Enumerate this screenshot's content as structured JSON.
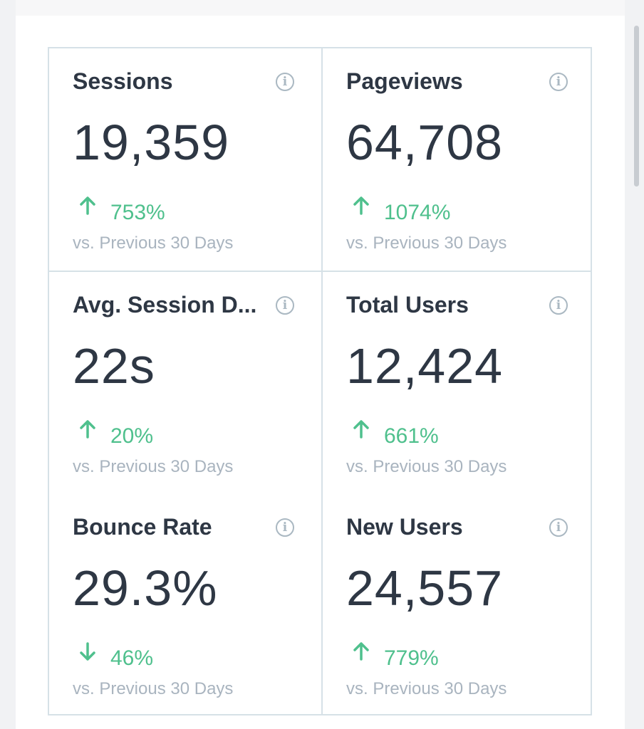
{
  "metrics": [
    {
      "title": "Sessions",
      "value": "19,359",
      "change": "753%",
      "direction": "up",
      "compare": "vs. Previous 30 Days"
    },
    {
      "title": "Pageviews",
      "value": "64,708",
      "change": "1074%",
      "direction": "up",
      "compare": "vs. Previous 30 Days"
    },
    {
      "title": "Avg. Session D...",
      "value": "22s",
      "change": "20%",
      "direction": "up",
      "compare": "vs. Previous 30 Days"
    },
    {
      "title": "Total Users",
      "value": "12,424",
      "change": "661%",
      "direction": "up",
      "compare": "vs. Previous 30 Days"
    },
    {
      "title": "Bounce Rate",
      "value": "29.3%",
      "change": "46%",
      "direction": "down",
      "compare": "vs. Previous 30 Days"
    },
    {
      "title": "New Users",
      "value": "24,557",
      "change": "779%",
      "direction": "up",
      "compare": "vs. Previous 30 Days"
    }
  ],
  "icons": {
    "info": "info-icon",
    "up": "arrow-up-icon",
    "down": "arrow-down-icon"
  },
  "colors": {
    "positive": "#4fc08d",
    "title": "#2e3744",
    "muted": "#a9b4bf",
    "border": "#d6e1e7"
  }
}
